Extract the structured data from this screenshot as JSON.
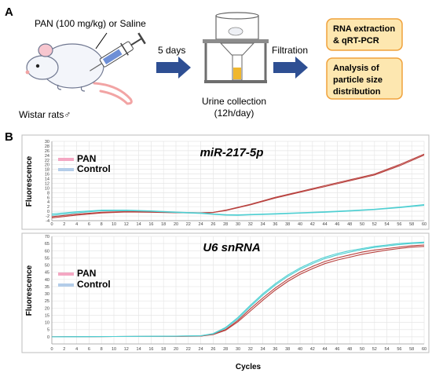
{
  "panel_a": {
    "label": "A",
    "treatment_text": "PAN (100 mg/kg) or Saline",
    "subject_text": "Wistar rats♂",
    "duration_text": "5 days",
    "collection_line1": "Urine collection",
    "collection_line2": "(12h/day)",
    "filtration_text": "Filtration",
    "box_rna_line1": "RNA extraction",
    "box_rna_line2": "& qRT-PCR",
    "box_particle_line1": "Analysis of",
    "box_particle_line2": "particle size",
    "box_particle_line3": "distribution",
    "colors": {
      "arrow": "#2e4f93",
      "box_fill": "#fde7b0",
      "box_border": "#f0a23c"
    }
  },
  "panel_b": {
    "label": "B",
    "xlabel": "Cycles",
    "colors": {
      "pan": "#b8413e",
      "control": "#4fcfd2",
      "legend_pan": "#f4a7c3",
      "legend_control": "#b3cde9"
    }
  },
  "chart_data": [
    {
      "type": "line",
      "title": "miR-217-5p",
      "ylabel": "Fluorescence",
      "xlabel": "",
      "xlim": [
        0,
        60
      ],
      "ylim": [
        -4,
        30
      ],
      "x_ticks": [
        0,
        2,
        4,
        6,
        8,
        10,
        12,
        14,
        16,
        18,
        20,
        22,
        24,
        26,
        28,
        30,
        32,
        34,
        36,
        38,
        40,
        42,
        44,
        46,
        48,
        50,
        52,
        54,
        56,
        58,
        60
      ],
      "y_ticks": [
        -4,
        -2,
        0,
        2,
        4,
        6,
        8,
        10,
        12,
        14,
        16,
        18,
        20,
        22,
        24,
        26,
        28,
        30
      ],
      "grid": true,
      "legend": "top-left",
      "series": [
        {
          "name": "PAN",
          "x": [
            0,
            4,
            8,
            12,
            16,
            20,
            24,
            26,
            28,
            32,
            36,
            40,
            44,
            48,
            52,
            56,
            60
          ],
          "y": [
            -2.8,
            -1.6,
            -0.7,
            -0.3,
            -0.4,
            -0.6,
            -0.7,
            -0.5,
            0.5,
            3,
            6,
            8.5,
            11,
            13.5,
            16,
            20,
            24.5
          ]
        },
        {
          "name": "PAN",
          "x": [
            0,
            4,
            8,
            12,
            16,
            20,
            24,
            26,
            28,
            32,
            36,
            40,
            44,
            48,
            52,
            56,
            60
          ],
          "y": [
            -2.3,
            -1.2,
            -0.4,
            -0.1,
            -0.2,
            -0.5,
            -0.6,
            -0.5,
            0.3,
            2.8,
            5.7,
            8.2,
            10.6,
            13.1,
            15.6,
            19.5,
            24.1
          ]
        },
        {
          "name": "Control",
          "x": [
            0,
            4,
            8,
            12,
            16,
            20,
            24,
            26,
            28,
            30,
            32,
            36,
            40,
            44,
            48,
            52,
            56,
            60
          ],
          "y": [
            -1.7,
            -0.6,
            0.2,
            0.3,
            0,
            -0.5,
            -0.9,
            -1.3,
            -1.6,
            -1.7,
            -1.5,
            -1.2,
            -0.8,
            -0.4,
            0.1,
            0.7,
            1.6,
            2.6
          ]
        },
        {
          "name": "Control",
          "x": [
            0,
            4,
            8,
            12,
            16,
            20,
            24,
            26,
            28,
            30,
            32,
            36,
            40,
            44,
            48,
            52,
            56,
            60
          ],
          "y": [
            -1.1,
            -0.2,
            0.5,
            0.5,
            0.2,
            -0.3,
            -0.7,
            -1.1,
            -1.4,
            -1.5,
            -1.3,
            -1,
            -0.6,
            -0.2,
            0.3,
            0.9,
            1.8,
            2.9
          ]
        }
      ]
    },
    {
      "type": "line",
      "title": "U6 snRNA",
      "ylabel": "Fluorescence",
      "xlabel": "Cycles",
      "xlim": [
        0,
        60
      ],
      "ylim": [
        -5,
        70
      ],
      "x_ticks": [
        0,
        2,
        4,
        6,
        8,
        10,
        12,
        14,
        16,
        18,
        20,
        22,
        24,
        26,
        28,
        30,
        32,
        34,
        36,
        38,
        40,
        42,
        44,
        46,
        48,
        50,
        52,
        54,
        56,
        58,
        60
      ],
      "y_ticks": [
        0,
        5,
        10,
        15,
        20,
        25,
        30,
        35,
        40,
        45,
        50,
        55,
        60,
        65,
        70
      ],
      "grid": true,
      "legend": "top-left",
      "series": [
        {
          "name": "PAN",
          "x": [
            0,
            10,
            20,
            24,
            26,
            28,
            30,
            32,
            34,
            36,
            38,
            40,
            42,
            44,
            46,
            48,
            50,
            52,
            54,
            56,
            58,
            60
          ],
          "y": [
            0,
            0.2,
            0.3,
            0.5,
            1.5,
            4.5,
            10.5,
            18,
            25.5,
            32.5,
            38.5,
            43.5,
            47.5,
            51,
            53.5,
            55.5,
            57.5,
            59,
            60.5,
            61.5,
            62.5,
            63
          ]
        },
        {
          "name": "PAN",
          "x": [
            0,
            10,
            20,
            24,
            26,
            28,
            30,
            32,
            34,
            36,
            38,
            40,
            42,
            44,
            46,
            48,
            50,
            52,
            54,
            56,
            58,
            60
          ],
          "y": [
            0,
            0.2,
            0.3,
            0.5,
            1.8,
            5,
            11.5,
            19.5,
            27,
            34,
            40,
            45,
            49,
            52.5,
            55,
            57,
            59,
            60.5,
            61.5,
            62.5,
            63.5,
            64
          ]
        },
        {
          "name": "Control",
          "x": [
            0,
            10,
            20,
            24,
            26,
            28,
            30,
            32,
            34,
            36,
            38,
            40,
            42,
            44,
            46,
            48,
            50,
            52,
            54,
            56,
            58,
            60
          ],
          "y": [
            0,
            0.2,
            0.4,
            0.7,
            2.2,
            6.5,
            13.5,
            22,
            30,
            37,
            43,
            48,
            52,
            55.5,
            58,
            60,
            61.5,
            63,
            64,
            65,
            65.5,
            66
          ]
        },
        {
          "name": "Control",
          "x": [
            0,
            10,
            20,
            24,
            26,
            28,
            30,
            32,
            34,
            36,
            38,
            40,
            42,
            44,
            46,
            48,
            50,
            52,
            54,
            56,
            58,
            60
          ],
          "y": [
            0,
            0.2,
            0.4,
            0.7,
            2,
            6,
            12.5,
            21,
            29,
            36,
            42,
            47,
            51,
            54.5,
            57,
            59,
            60.8,
            62.3,
            63.3,
            64.3,
            65,
            65.5
          ]
        }
      ]
    }
  ]
}
